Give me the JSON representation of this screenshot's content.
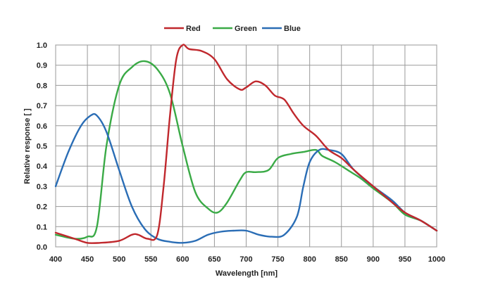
{
  "chart_data": {
    "type": "line",
    "title": "",
    "xlabel": "Wavelength  [nm]",
    "ylabel": "Relative  response  [ ]",
    "xlim": [
      400,
      1000
    ],
    "ylim": [
      0,
      1
    ],
    "xticks": [
      400,
      450,
      500,
      550,
      600,
      650,
      700,
      750,
      800,
      850,
      900,
      950,
      1000
    ],
    "yticks": [
      "0.0",
      "0.1",
      "0.2",
      "0.3",
      "0.4",
      "0.5",
      "0.6",
      "0.7",
      "0.8",
      "0.9",
      "1.0"
    ],
    "grid": true,
    "legend_position": "top-center",
    "series": [
      {
        "name": "Red",
        "color": "#c0282d",
        "x": [
          400,
          430,
          450,
          470,
          500,
          520,
          530,
          545,
          560,
          570,
          580,
          590,
          600,
          610,
          630,
          650,
          670,
          690,
          700,
          715,
          730,
          745,
          760,
          775,
          790,
          810,
          830,
          850,
          870,
          900,
          930,
          950,
          975,
          1000
        ],
        "y": [
          0.07,
          0.04,
          0.02,
          0.02,
          0.03,
          0.06,
          0.06,
          0.04,
          0.06,
          0.3,
          0.65,
          0.93,
          1.0,
          0.98,
          0.97,
          0.93,
          0.83,
          0.78,
          0.79,
          0.82,
          0.8,
          0.75,
          0.73,
          0.66,
          0.6,
          0.55,
          0.48,
          0.44,
          0.38,
          0.3,
          0.22,
          0.17,
          0.13,
          0.08
        ]
      },
      {
        "name": "Green",
        "color": "#3aaa46",
        "x": [
          400,
          430,
          450,
          465,
          480,
          500,
          520,
          540,
          560,
          580,
          600,
          620,
          640,
          655,
          670,
          690,
          700,
          715,
          735,
          750,
          770,
          790,
          810,
          820,
          840,
          860,
          880,
          900,
          930,
          950,
          975,
          1000
        ],
        "y": [
          0.06,
          0.04,
          0.05,
          0.1,
          0.5,
          0.8,
          0.89,
          0.92,
          0.88,
          0.76,
          0.5,
          0.27,
          0.19,
          0.17,
          0.22,
          0.33,
          0.37,
          0.37,
          0.38,
          0.44,
          0.46,
          0.47,
          0.48,
          0.45,
          0.42,
          0.38,
          0.34,
          0.29,
          0.22,
          0.16,
          0.13,
          0.08
        ]
      },
      {
        "name": "Blue",
        "color": "#2a6db5",
        "x": [
          400,
          420,
          440,
          455,
          465,
          480,
          500,
          520,
          540,
          560,
          580,
          600,
          620,
          640,
          660,
          680,
          700,
          720,
          740,
          760,
          780,
          790,
          800,
          815,
          830,
          850,
          870,
          900,
          930,
          950,
          975,
          1000
        ],
        "y": [
          0.3,
          0.47,
          0.6,
          0.65,
          0.65,
          0.57,
          0.38,
          0.2,
          0.09,
          0.04,
          0.025,
          0.02,
          0.03,
          0.06,
          0.075,
          0.08,
          0.08,
          0.06,
          0.05,
          0.06,
          0.15,
          0.3,
          0.42,
          0.48,
          0.48,
          0.46,
          0.38,
          0.3,
          0.23,
          0.17,
          0.13,
          0.08
        ]
      }
    ]
  }
}
